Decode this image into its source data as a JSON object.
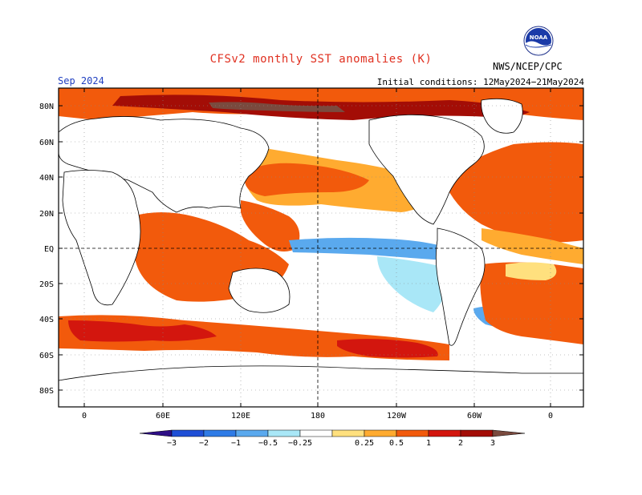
{
  "title": "CFSv2 monthly SST anomalies (K)",
  "valid_month": "Sep 2024",
  "initial_conditions": "Initial conditions: 12May2024−21May2024",
  "agency": "NWS/NCEP/CPC",
  "logo_text": "NOAA",
  "latitude_labels": [
    "80N",
    "60N",
    "40N",
    "20N",
    "EQ",
    "20S",
    "40S",
    "60S",
    "80S"
  ],
  "longitude_labels": [
    "0",
    "60E",
    "120E",
    "180",
    "120W",
    "60W",
    "0"
  ],
  "colorbar": {
    "labels": [
      "−3",
      "−2",
      "−1",
      "−0.5",
      "−0.25",
      "0.25",
      "0.5",
      "1",
      "2",
      "3"
    ],
    "colors": [
      "#2e0e86",
      "#1f4fd6",
      "#2f7be6",
      "#5aa9ee",
      "#a9e7f7",
      "#ffffff",
      "#ffe07e",
      "#ffab30",
      "#f25a0c",
      "#d3160e",
      "#a30d06",
      "#7a4a3e"
    ]
  },
  "colors": {
    "title": "#e03020",
    "valid_month": "#2040c0",
    "warm_strong": "#f25a0c",
    "warm_moderate": "#ffab30",
    "warm_weak": "#ffe07e",
    "cool_weak": "#a9e7f7",
    "cool_moderate": "#5aa9ee"
  }
}
